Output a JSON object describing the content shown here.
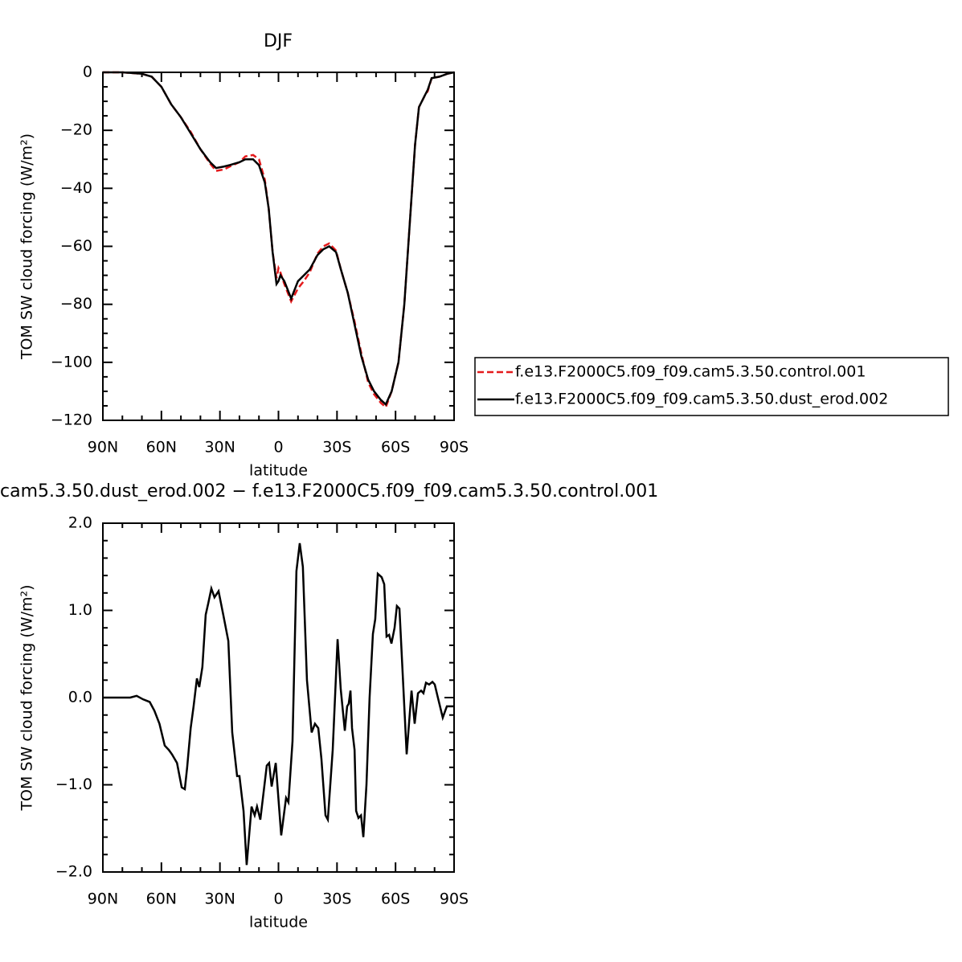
{
  "chart_data": [
    {
      "type": "line",
      "title": "DJF",
      "x_label": "latitude",
      "y_label": "TOM SW cloud forcing (W/m²)",
      "x": [
        90,
        80,
        70,
        65,
        60,
        55,
        50,
        45,
        40,
        35,
        32,
        28,
        25,
        20,
        17,
        13,
        10,
        7,
        5,
        3,
        1,
        0,
        -1,
        -3,
        -6.5,
        -10,
        -13,
        -16,
        -20,
        -23,
        -26,
        -29.5,
        -32,
        -35.5,
        -39,
        -42.5,
        -46,
        -49,
        -52.5,
        -55,
        -58,
        -61.5,
        -64.5,
        -67.5,
        -70,
        -72,
        -75,
        -76.5,
        -78.5,
        -82.5,
        -86.5,
        -90
      ],
      "series": [
        {
          "name": "f.e13.F2000C5.f09_f09.cam5.3.50.control.001",
          "color": "#e41a1c",
          "line_style": "dashed",
          "values": [
            0,
            0,
            -0.5,
            -1.5,
            -5,
            -11,
            -15.5,
            -20.5,
            -26.5,
            -31.5,
            -34,
            -33.5,
            -32.5,
            -31,
            -29,
            -28.5,
            -30,
            -37,
            -47,
            -62,
            -71,
            -67.5,
            -69,
            -73,
            -79,
            -74.5,
            -72,
            -69,
            -62.5,
            -60,
            -59,
            -61.5,
            -68,
            -76,
            -86,
            -97,
            -107,
            -111,
            -114,
            -115.5,
            -110,
            -100,
            -80,
            -50,
            -25,
            -12,
            -8,
            -6.5,
            -2,
            -1.5,
            -0.5,
            0
          ]
        },
        {
          "name": "f.e13.F2000C5.f09_f09.cam5.3.50.dust_erod.002",
          "color": "#000000",
          "line_style": "solid",
          "values": [
            0,
            0,
            -0.5,
            -1.5,
            -5,
            -11,
            -15.5,
            -21,
            -26.5,
            -31,
            -33,
            -32.5,
            -32,
            -31,
            -30,
            -30,
            -32,
            -38,
            -47,
            -62,
            -73,
            -72,
            -70,
            -72,
            -78,
            -72,
            -70,
            -68,
            -63,
            -61,
            -60,
            -62,
            -68,
            -76,
            -87,
            -98,
            -106,
            -110,
            -113,
            -114.5,
            -110,
            -100,
            -80,
            -50,
            -25,
            -12,
            -8,
            -6,
            -2,
            -1.5,
            -0.5,
            0
          ]
        }
      ],
      "xlim": [
        90,
        -90
      ],
      "xticks": [
        {
          "value": 90,
          "label": "90N"
        },
        {
          "value": 60,
          "label": "60N"
        },
        {
          "value": 30,
          "label": "30N"
        },
        0,
        {
          "value": -30,
          "label": "30S"
        },
        {
          "value": -60,
          "label": "60S"
        },
        {
          "value": -90,
          "label": "90S"
        }
      ],
      "ylim": [
        -120,
        0
      ],
      "yticks": [
        {
          "value": -120,
          "label": "−120"
        },
        {
          "value": -100,
          "label": "−100"
        },
        {
          "value": -80,
          "label": "−80"
        },
        {
          "value": -60,
          "label": "−60"
        },
        {
          "value": -40,
          "label": "−40"
        },
        {
          "value": -20,
          "label": "−20"
        },
        0
      ],
      "legend": "outside-right"
    },
    {
      "type": "line",
      "title": "cam5.3.50.dust_erod.002 − f.e13.F2000C5.f09_f09.cam5.3.50.control.001",
      "x_label": "latitude",
      "y_label": "TOM SW cloud forcing (W/m²)",
      "x": [
        90,
        76,
        72.7,
        69.4,
        66,
        63.6,
        61,
        58.3,
        56.2,
        54.6,
        52,
        49.6,
        48,
        46.8,
        45,
        43.5,
        41.8,
        40.6,
        39,
        37.3,
        36,
        34.4,
        32.8,
        30.7,
        28.3,
        25.7,
        23.7,
        21.2,
        20,
        17.9,
        16.3,
        13.8,
        12.2,
        11,
        9.3,
        6,
        4.8,
        3.5,
        1.4,
        -1.4,
        -3.9,
        -5.1,
        -7.2,
        -9.2,
        -10.9,
        -12.5,
        -14.6,
        -17,
        -18.7,
        -20.4,
        -22,
        -24.1,
        -25.3,
        -27.8,
        -30.3,
        -31.9,
        -34,
        -35.2,
        -36,
        -36.9,
        -37.7,
        -39,
        -39.8,
        -41,
        -42.3,
        -43.5,
        -45.1,
        -46.7,
        -48.4,
        -49.6,
        -50.9,
        -52.9,
        -54.2,
        -55.4,
        -56.7,
        -57.9,
        -59.5,
        -60.7,
        -62,
        -63.6,
        -65.7,
        -66.9,
        -68.2,
        -69.8,
        -71.5,
        -73.1,
        -74.3,
        -75.6,
        -77.2,
        -78.9,
        -80.1,
        -81.7,
        -84.2,
        -86.3,
        -88,
        -90
      ],
      "values": [
        0,
        0,
        0.02,
        -0.02,
        -0.05,
        -0.15,
        -0.3,
        -0.55,
        -0.6,
        -0.65,
        -0.75,
        -1.03,
        -1.05,
        -0.8,
        -0.35,
        -0.1,
        0.22,
        0.12,
        0.35,
        0.95,
        1.08,
        1.25,
        1.15,
        1.22,
        0.95,
        0.65,
        -0.4,
        -0.9,
        -0.9,
        -1.3,
        -1.92,
        -1.25,
        -1.35,
        -1.25,
        -1.4,
        -0.78,
        -0.75,
        -1.02,
        -0.75,
        -1.58,
        -1.15,
        -1.2,
        -0.5,
        1.45,
        1.77,
        1.5,
        0.2,
        -0.4,
        -0.3,
        -0.35,
        -0.7,
        -1.35,
        -1.4,
        -0.6,
        0.67,
        0.1,
        -0.38,
        -0.1,
        -0.07,
        0.08,
        -0.35,
        -0.6,
        -1.3,
        -1.38,
        -1.35,
        -1.6,
        -1,
        0,
        0.73,
        0.9,
        1.42,
        1.38,
        1.3,
        0.7,
        0.72,
        0.62,
        0.8,
        1.05,
        1.02,
        0.3,
        -0.65,
        -0.3,
        0.08,
        -0.3,
        0.05,
        0.08,
        0.05,
        0.17,
        0.15,
        0.18,
        0.15,
        0,
        -0.23,
        -0.1,
        -0.1,
        -0.1
      ],
      "color": "#000000",
      "line_style": "solid",
      "xlim": [
        90,
        -90
      ],
      "xticks": [
        {
          "value": 90,
          "label": "90N"
        },
        {
          "value": 60,
          "label": "60N"
        },
        {
          "value": 30,
          "label": "30N"
        },
        0,
        {
          "value": -30,
          "label": "30S"
        },
        {
          "value": -60,
          "label": "60S"
        },
        {
          "value": -90,
          "label": "90S"
        }
      ],
      "ylim": [
        -2,
        2
      ],
      "yticks": [
        {
          "value": -2,
          "label": "−2.0"
        },
        {
          "value": -1,
          "label": "−1.0"
        },
        {
          "value": 0,
          "label": "0.0"
        },
        {
          "value": 1,
          "label": "1.0"
        },
        {
          "value": 2,
          "label": "2.0"
        }
      ]
    }
  ]
}
